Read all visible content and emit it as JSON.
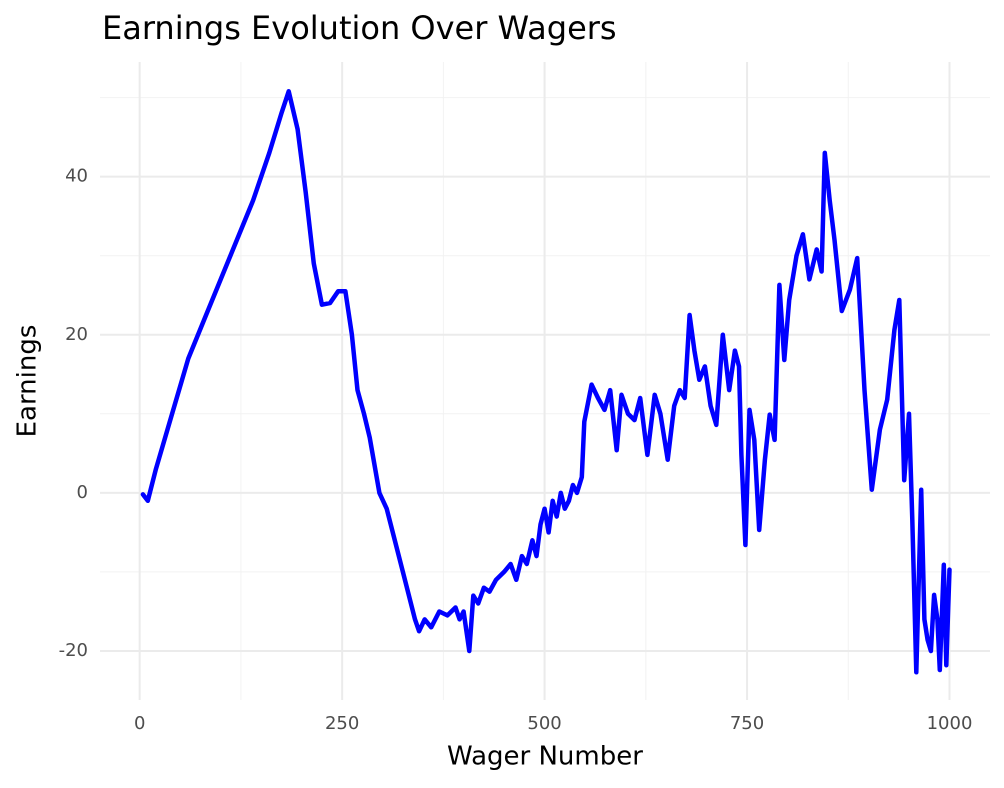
{
  "chart_data": {
    "type": "line",
    "title": "Earnings Evolution Over Wagers",
    "xlabel": "Wager Number",
    "ylabel": "Earnings",
    "x": [
      4,
      10,
      20,
      40,
      60,
      80,
      100,
      120,
      140,
      160,
      175,
      184,
      195,
      205,
      215,
      225,
      235,
      245,
      254,
      262,
      269,
      277,
      284,
      296,
      305,
      315,
      325,
      340,
      345,
      352,
      360,
      370,
      380,
      390,
      395,
      400,
      407,
      412,
      418,
      425,
      432,
      440,
      450,
      458,
      465,
      472,
      478,
      485,
      490,
      495,
      500,
      505,
      510,
      515,
      520,
      525,
      530,
      535,
      540,
      546,
      549,
      558,
      566,
      574,
      581,
      589,
      595,
      603,
      611,
      618,
      627,
      636,
      643,
      652,
      660,
      667,
      673,
      679,
      685,
      691,
      698,
      705,
      712,
      720,
      728,
      735,
      740,
      743,
      748,
      753,
      759,
      765,
      772,
      778,
      784,
      790,
      796,
      802,
      811,
      819,
      827,
      836,
      842,
      846,
      852,
      858,
      867,
      877,
      886,
      895,
      904,
      914,
      923,
      932,
      938,
      944,
      950,
      954,
      959,
      965,
      969,
      973,
      977,
      981,
      985,
      988,
      993,
      996,
      1000
    ],
    "values": [
      -0.2,
      -1,
      3,
      10,
      17,
      22,
      27,
      32,
      37,
      43,
      48,
      50.8,
      46,
      38,
      29,
      23.8,
      24,
      25.5,
      25.5,
      20,
      13,
      10,
      7,
      0,
      -2,
      -6,
      -10,
      -16,
      -17.5,
      -16,
      -17,
      -15,
      -15.5,
      -14.5,
      -16,
      -15,
      -20,
      -13,
      -14,
      -12,
      -12.5,
      -11,
      -10,
      -9,
      -11,
      -8,
      -9,
      -6,
      -8,
      -4,
      -2,
      -5,
      -1,
      -3,
      0,
      -2,
      -1,
      1,
      0,
      2,
      9,
      13.7,
      12,
      10.5,
      13,
      5.4,
      12.4,
      10,
      9.2,
      12,
      4.8,
      12.4,
      10,
      4.2,
      11,
      13,
      12,
      22.5,
      18,
      14.3,
      16,
      11,
      8.6,
      20,
      13,
      18,
      16,
      4.8,
      -6.6,
      10.5,
      6.7,
      -4.7,
      4.2,
      9.9,
      6.7,
      26.3,
      16.8,
      24.4,
      30,
      32.7,
      27,
      30.8,
      28,
      43,
      37,
      32,
      23,
      25.7,
      29.7,
      13,
      0.4,
      8,
      11.8,
      20.6,
      24.4,
      1.6,
      10,
      -3.4,
      -22.7,
      0.4,
      -16,
      -18.6,
      -20,
      -12.9,
      -16,
      -22.4,
      -9.1,
      -21.8,
      -9.7
    ],
    "color": "#0000ff",
    "xlim": [
      -49,
      1050
    ],
    "ylim": [
      -26.2,
      54.5
    ],
    "xticks": [
      0,
      250,
      500,
      750,
      1000
    ],
    "yticks": [
      -20,
      0,
      20,
      40
    ],
    "grid": true
  }
}
